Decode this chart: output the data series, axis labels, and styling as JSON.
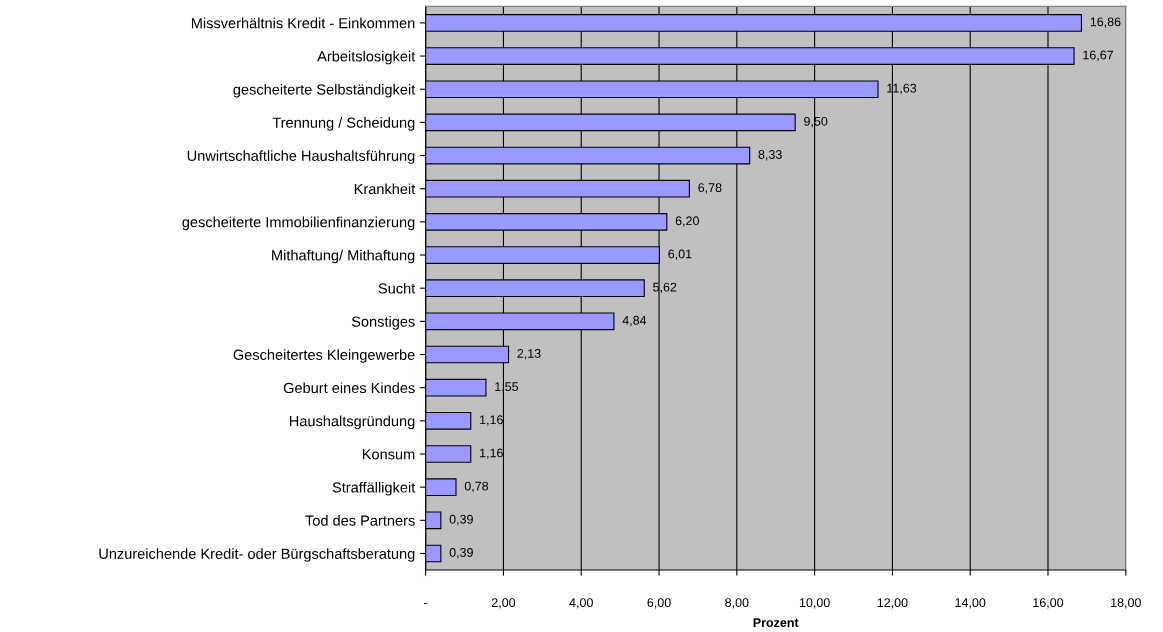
{
  "chart_data": {
    "type": "bar",
    "orientation": "horizontal",
    "xlabel": "Prozent",
    "categories": [
      "Missverhältnis Kredit - Einkommen",
      "Arbeitslosigkeit",
      "gescheiterte Selbständigkeit",
      "Trennung / Scheidung",
      "Unwirtschaftliche Haushaltsführung",
      "Krankheit",
      "gescheiterte Immobilienfinanzierung",
      "Mithaftung/ Mithaftung",
      "Sucht",
      "Sonstiges",
      "Gescheitertes Kleingewerbe",
      "Geburt eines Kindes",
      "Haushaltsgründung",
      "Konsum",
      "Straffälligkeit",
      "Tod des Partners",
      "Unzureichende Kredit- oder Bürgschaftsberatung"
    ],
    "values": [
      16.86,
      16.67,
      11.63,
      9.5,
      8.33,
      6.78,
      6.2,
      6.01,
      5.62,
      4.84,
      2.13,
      1.55,
      1.16,
      1.16,
      0.78,
      0.39,
      0.39
    ],
    "value_labels": [
      "16,86",
      "16,67",
      "11,63",
      "9,50",
      "8,33",
      "6,78",
      "6,20",
      "6,01",
      "5,62",
      "4,84",
      "2,13",
      "1,55",
      "1,16",
      "1,16",
      "0,78",
      "0,39",
      "0,39"
    ],
    "color": "#9999ff",
    "xlim": [
      0,
      18
    ],
    "xticks": [
      {
        "value": 0,
        "label": "-"
      },
      {
        "value": 2,
        "label": "2,00"
      },
      {
        "value": 4,
        "label": "4,00"
      },
      {
        "value": 6,
        "label": "6,00"
      },
      {
        "value": 8,
        "label": "8,00"
      },
      {
        "value": 10,
        "label": "10,00"
      },
      {
        "value": 12,
        "label": "12,00"
      },
      {
        "value": 14,
        "label": "14,00"
      },
      {
        "value": 16,
        "label": "16,00"
      },
      {
        "value": 18,
        "label": "18,00"
      }
    ],
    "grid": "x",
    "legend": false
  }
}
